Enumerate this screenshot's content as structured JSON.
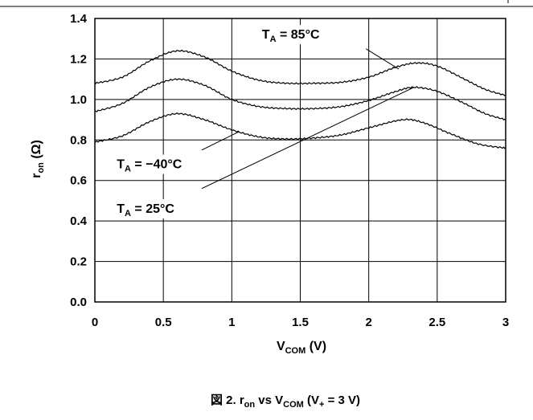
{
  "chart_data": {
    "type": "line",
    "caption": {
      "prefix": "図 2. r",
      "sub1": "on",
      "mid": " vs V",
      "sub2": "COM",
      "tail": " (V",
      "sub3": "+",
      "end": " = 3 V)"
    },
    "xlabel": {
      "main": "V",
      "sub": "COM",
      "tail": " (V)"
    },
    "ylabel": {
      "main": "r",
      "sub": "on",
      "tail": " (Ω)"
    },
    "xlim": [
      0,
      3
    ],
    "ylim": [
      0,
      1.4
    ],
    "x_ticks": [
      "0",
      "0.5",
      "1",
      "1.5",
      "2",
      "2.5",
      "3"
    ],
    "y_ticks": [
      "0.0",
      "0.2",
      "0.4",
      "0.6",
      "0.8",
      "1.0",
      "1.2",
      "1.4"
    ],
    "grid": true,
    "series": [
      {
        "name": "TA = 85°C",
        "label": {
          "main": "T",
          "sub": "A",
          "tail": " = 85°C"
        },
        "x": [
          0,
          0.2,
          0.4,
          0.6,
          0.8,
          1.0,
          1.2,
          1.4,
          1.6,
          1.8,
          2.0,
          2.2,
          2.35,
          2.5,
          2.7,
          2.85,
          3.0
        ],
        "y": [
          1.08,
          1.11,
          1.19,
          1.24,
          1.21,
          1.14,
          1.095,
          1.08,
          1.08,
          1.085,
          1.11,
          1.16,
          1.18,
          1.165,
          1.1,
          1.05,
          1.02
        ]
      },
      {
        "name": "TA = 25°C",
        "label": {
          "main": "T",
          "sub": "A",
          "tail": " = 25°C"
        },
        "x": [
          0,
          0.2,
          0.4,
          0.6,
          0.8,
          1.0,
          1.2,
          1.4,
          1.6,
          1.8,
          2.0,
          2.2,
          2.33,
          2.5,
          2.7,
          2.85,
          3.0
        ],
        "y": [
          0.94,
          0.98,
          1.06,
          1.1,
          1.07,
          1.0,
          0.965,
          0.955,
          0.955,
          0.965,
          0.995,
          1.04,
          1.06,
          1.04,
          0.98,
          0.93,
          0.9
        ]
      },
      {
        "name": "TA = -40°C",
        "label": {
          "main": "T",
          "sub": "A",
          "tail": " = −40°C"
        },
        "x": [
          0,
          0.2,
          0.4,
          0.6,
          0.8,
          1.0,
          1.2,
          1.4,
          1.6,
          1.8,
          2.0,
          2.25,
          2.4,
          2.6,
          2.8,
          3.0
        ],
        "y": [
          0.79,
          0.82,
          0.89,
          0.93,
          0.9,
          0.85,
          0.815,
          0.805,
          0.81,
          0.825,
          0.86,
          0.9,
          0.885,
          0.83,
          0.78,
          0.76
        ]
      }
    ],
    "annotations": [
      {
        "series": 0,
        "text_x": 1.22,
        "text_y": 1.3,
        "line_from": [
          1.98,
          1.25
        ],
        "line_to": [
          2.22,
          1.15
        ]
      },
      {
        "series": 2,
        "text_x": 0.16,
        "text_y": 0.66,
        "line_from": [
          0.78,
          0.75
        ],
        "line_to": [
          1.05,
          0.84
        ]
      },
      {
        "series": 1,
        "text_x": 0.16,
        "text_y": 0.44,
        "line_from": [
          0.78,
          0.56
        ],
        "line_to": [
          2.33,
          1.06
        ]
      }
    ]
  }
}
